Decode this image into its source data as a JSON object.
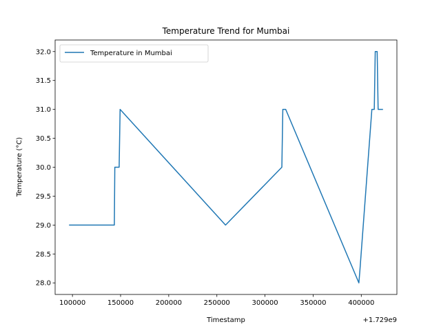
{
  "chart_data": {
    "type": "line",
    "title": "Temperature Trend for Mumbai",
    "xlabel": "Timestamp",
    "ylabel": "Temperature (°C)",
    "x_offset_label": "+1.729e9",
    "xlim": [
      82000,
      437000
    ],
    "ylim": [
      27.8,
      32.2
    ],
    "x_ticks": [
      100000,
      150000,
      200000,
      250000,
      300000,
      350000,
      400000
    ],
    "x_tick_labels": [
      "100000",
      "150000",
      "200000",
      "250000",
      "300000",
      "350000",
      "400000"
    ],
    "y_ticks": [
      28.0,
      28.5,
      29.0,
      29.5,
      30.0,
      30.5,
      31.0,
      31.5,
      32.0
    ],
    "y_tick_labels": [
      "28.0",
      "28.5",
      "29.0",
      "29.5",
      "30.0",
      "30.5",
      "31.0",
      "31.5",
      "32.0"
    ],
    "grid": false,
    "legend_position": "upper left",
    "series": [
      {
        "name": "Temperature in Mumbai",
        "color": "#1f77b4",
        "x": [
          97000,
          143500,
          144000,
          148500,
          149500,
          259000,
          317500,
          318500,
          321500,
          397500,
          398500,
          411000,
          413500,
          414500,
          416500,
          417500,
          422000
        ],
        "y": [
          29,
          29,
          30,
          30,
          31,
          29,
          30,
          31,
          31,
          28,
          28.2,
          31,
          31,
          32,
          32,
          31,
          31
        ]
      }
    ]
  }
}
